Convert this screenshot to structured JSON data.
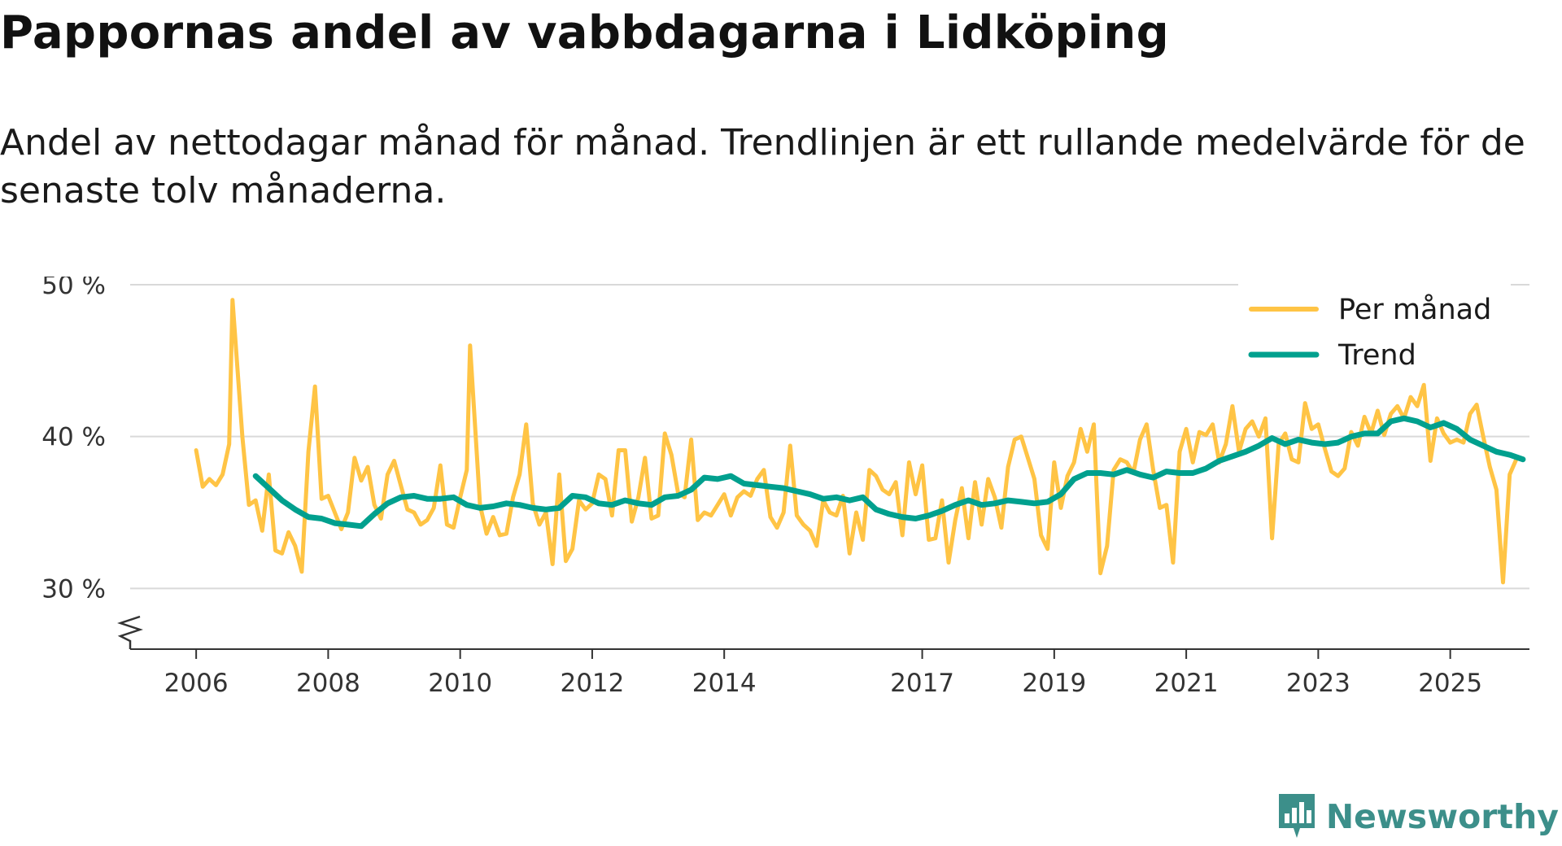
{
  "title": "Pappornas andel av vabbdagarna i Lidköping",
  "subtitle": "Andel av nettodagar månad för månad. Trendlinjen är ett rullande medelvärde för de senaste tolv månaderna.",
  "brand": {
    "name": "Newsworthy",
    "icon": "bar-chart-icon"
  },
  "colors": {
    "per_month": "#ffc445",
    "trend": "#00a08e",
    "grid": "#d9d9d9",
    "axis": "#333333",
    "brand": "#3c8f8a"
  },
  "chart_data": {
    "type": "line",
    "title": "Pappornas andel av vabbdagarna i Lidköping",
    "xlabel": "",
    "ylabel": "",
    "xlim": [
      2005.0,
      2026.2
    ],
    "ylim": [
      26,
      50
    ],
    "y_ticks": [
      30,
      40,
      50
    ],
    "y_tick_labels": [
      "30 %",
      "40 %",
      "50 %"
    ],
    "x_ticks": [
      2006,
      2008,
      2010,
      2012,
      2014,
      2017,
      2019,
      2021,
      2023,
      2025
    ],
    "x_tick_labels": [
      "2006",
      "2008",
      "2010",
      "2012",
      "2014",
      "2017",
      "2019",
      "2021",
      "2023",
      "2025"
    ],
    "grid": true,
    "axis_break": true,
    "legend_position": "top-right",
    "series": [
      {
        "name": "Per månad",
        "points": [
          [
            2006.0,
            39.1
          ],
          [
            2006.1,
            36.7
          ],
          [
            2006.2,
            37.2
          ],
          [
            2006.3,
            36.8
          ],
          [
            2006.4,
            37.5
          ],
          [
            2006.5,
            39.5
          ],
          [
            2006.55,
            49.0
          ],
          [
            2006.7,
            40.0
          ],
          [
            2006.8,
            35.5
          ],
          [
            2006.9,
            35.8
          ],
          [
            2007.0,
            33.8
          ],
          [
            2007.1,
            37.5
          ],
          [
            2007.2,
            32.5
          ],
          [
            2007.3,
            32.3
          ],
          [
            2007.4,
            33.7
          ],
          [
            2007.5,
            32.8
          ],
          [
            2007.6,
            31.1
          ],
          [
            2007.7,
            39.0
          ],
          [
            2007.8,
            43.3
          ],
          [
            2007.9,
            35.9
          ],
          [
            2008.0,
            36.1
          ],
          [
            2008.1,
            35.0
          ],
          [
            2008.2,
            33.9
          ],
          [
            2008.3,
            35.0
          ],
          [
            2008.4,
            38.6
          ],
          [
            2008.5,
            37.1
          ],
          [
            2008.6,
            38.0
          ],
          [
            2008.7,
            35.5
          ],
          [
            2008.8,
            34.6
          ],
          [
            2008.9,
            37.5
          ],
          [
            2009.0,
            38.4
          ],
          [
            2009.1,
            36.8
          ],
          [
            2009.2,
            35.2
          ],
          [
            2009.3,
            35.0
          ],
          [
            2009.4,
            34.2
          ],
          [
            2009.5,
            34.5
          ],
          [
            2009.6,
            35.3
          ],
          [
            2009.7,
            38.1
          ],
          [
            2009.8,
            34.2
          ],
          [
            2009.9,
            34.0
          ],
          [
            2010.0,
            36.0
          ],
          [
            2010.1,
            37.8
          ],
          [
            2010.15,
            46.0
          ],
          [
            2010.3,
            35.5
          ],
          [
            2010.4,
            33.6
          ],
          [
            2010.5,
            34.7
          ],
          [
            2010.6,
            33.5
          ],
          [
            2010.7,
            33.6
          ],
          [
            2010.8,
            36.0
          ],
          [
            2010.9,
            37.5
          ],
          [
            2011.0,
            40.8
          ],
          [
            2011.1,
            35.6
          ],
          [
            2011.2,
            34.2
          ],
          [
            2011.3,
            35.0
          ],
          [
            2011.4,
            31.6
          ],
          [
            2011.5,
            37.5
          ],
          [
            2011.6,
            31.8
          ],
          [
            2011.7,
            32.6
          ],
          [
            2011.8,
            35.8
          ],
          [
            2011.9,
            35.2
          ],
          [
            2012.0,
            35.6
          ],
          [
            2012.1,
            37.5
          ],
          [
            2012.2,
            37.2
          ],
          [
            2012.3,
            34.8
          ],
          [
            2012.4,
            39.1
          ],
          [
            2012.5,
            39.1
          ],
          [
            2012.6,
            34.4
          ],
          [
            2012.7,
            36.0
          ],
          [
            2012.8,
            38.6
          ],
          [
            2012.9,
            34.6
          ],
          [
            2013.0,
            34.8
          ],
          [
            2013.1,
            40.2
          ],
          [
            2013.2,
            38.8
          ],
          [
            2013.3,
            36.3
          ],
          [
            2013.4,
            36.0
          ],
          [
            2013.5,
            39.8
          ],
          [
            2013.6,
            34.5
          ],
          [
            2013.7,
            35.0
          ],
          [
            2013.8,
            34.8
          ],
          [
            2013.9,
            35.5
          ],
          [
            2014.0,
            36.2
          ],
          [
            2014.1,
            34.8
          ],
          [
            2014.2,
            36.0
          ],
          [
            2014.3,
            36.4
          ],
          [
            2014.4,
            36.1
          ],
          [
            2014.5,
            37.2
          ],
          [
            2014.6,
            37.8
          ],
          [
            2014.7,
            34.7
          ],
          [
            2014.8,
            34.0
          ],
          [
            2014.9,
            35.0
          ],
          [
            2015.0,
            39.4
          ],
          [
            2015.1,
            34.8
          ],
          [
            2015.2,
            34.2
          ],
          [
            2015.3,
            33.8
          ],
          [
            2015.4,
            32.8
          ],
          [
            2015.5,
            35.8
          ],
          [
            2015.6,
            35.0
          ],
          [
            2015.7,
            34.8
          ],
          [
            2015.8,
            36.1
          ],
          [
            2015.9,
            32.3
          ],
          [
            2016.0,
            35.0
          ],
          [
            2016.1,
            33.2
          ],
          [
            2016.2,
            37.8
          ],
          [
            2016.3,
            37.4
          ],
          [
            2016.4,
            36.5
          ],
          [
            2016.5,
            36.2
          ],
          [
            2016.6,
            37.0
          ],
          [
            2016.7,
            33.5
          ],
          [
            2016.8,
            38.3
          ],
          [
            2016.9,
            36.2
          ],
          [
            2017.0,
            38.1
          ],
          [
            2017.1,
            33.2
          ],
          [
            2017.2,
            33.3
          ],
          [
            2017.3,
            35.8
          ],
          [
            2017.4,
            31.7
          ],
          [
            2017.5,
            34.5
          ],
          [
            2017.6,
            36.6
          ],
          [
            2017.7,
            33.3
          ],
          [
            2017.8,
            37.0
          ],
          [
            2017.9,
            34.2
          ],
          [
            2018.0,
            37.2
          ],
          [
            2018.1,
            36.0
          ],
          [
            2018.2,
            34.0
          ],
          [
            2018.3,
            38.0
          ],
          [
            2018.4,
            39.8
          ],
          [
            2018.5,
            40.0
          ],
          [
            2018.6,
            38.6
          ],
          [
            2018.7,
            37.2
          ],
          [
            2018.8,
            33.5
          ],
          [
            2018.9,
            32.6
          ],
          [
            2019.0,
            38.3
          ],
          [
            2019.1,
            35.3
          ],
          [
            2019.2,
            37.4
          ],
          [
            2019.3,
            38.3
          ],
          [
            2019.4,
            40.5
          ],
          [
            2019.5,
            39.0
          ],
          [
            2019.6,
            40.8
          ],
          [
            2019.7,
            31.0
          ],
          [
            2019.8,
            32.8
          ],
          [
            2019.9,
            37.8
          ],
          [
            2020.0,
            38.5
          ],
          [
            2020.1,
            38.3
          ],
          [
            2020.2,
            37.6
          ],
          [
            2020.3,
            39.8
          ],
          [
            2020.4,
            40.8
          ],
          [
            2020.5,
            37.8
          ],
          [
            2020.6,
            35.3
          ],
          [
            2020.7,
            35.5
          ],
          [
            2020.8,
            31.7
          ],
          [
            2020.9,
            39.0
          ],
          [
            2021.0,
            40.5
          ],
          [
            2021.1,
            38.3
          ],
          [
            2021.2,
            40.3
          ],
          [
            2021.3,
            40.1
          ],
          [
            2021.4,
            40.8
          ],
          [
            2021.5,
            38.3
          ],
          [
            2021.6,
            39.5
          ],
          [
            2021.7,
            42.0
          ],
          [
            2021.8,
            39.0
          ],
          [
            2021.9,
            40.5
          ],
          [
            2022.0,
            41.0
          ],
          [
            2022.1,
            40.0
          ],
          [
            2022.2,
            41.2
          ],
          [
            2022.3,
            33.3
          ],
          [
            2022.4,
            39.5
          ],
          [
            2022.5,
            40.2
          ],
          [
            2022.6,
            38.5
          ],
          [
            2022.7,
            38.3
          ],
          [
            2022.8,
            42.2
          ],
          [
            2022.9,
            40.5
          ],
          [
            2023.0,
            40.8
          ],
          [
            2023.1,
            39.2
          ],
          [
            2023.2,
            37.7
          ],
          [
            2023.3,
            37.4
          ],
          [
            2023.4,
            37.9
          ],
          [
            2023.5,
            40.3
          ],
          [
            2023.6,
            39.4
          ],
          [
            2023.7,
            41.3
          ],
          [
            2023.8,
            40.2
          ],
          [
            2023.9,
            41.7
          ],
          [
            2024.0,
            40.1
          ],
          [
            2024.1,
            41.5
          ],
          [
            2024.2,
            42.0
          ],
          [
            2024.3,
            41.2
          ],
          [
            2024.4,
            42.6
          ],
          [
            2024.5,
            42.0
          ],
          [
            2024.6,
            43.4
          ],
          [
            2024.7,
            38.4
          ],
          [
            2024.8,
            41.2
          ],
          [
            2024.9,
            40.2
          ],
          [
            2025.0,
            39.6
          ],
          [
            2025.1,
            39.8
          ],
          [
            2025.2,
            39.6
          ],
          [
            2025.3,
            41.5
          ],
          [
            2025.4,
            42.1
          ],
          [
            2025.5,
            40.0
          ],
          [
            2025.6,
            38.0
          ],
          [
            2025.7,
            36.5
          ],
          [
            2025.8,
            30.4
          ],
          [
            2025.9,
            37.5
          ],
          [
            2026.0,
            38.5
          ]
        ]
      },
      {
        "name": "Trend",
        "points": [
          [
            2006.9,
            37.4
          ],
          [
            2007.1,
            36.6
          ],
          [
            2007.3,
            35.8
          ],
          [
            2007.5,
            35.2
          ],
          [
            2007.7,
            34.7
          ],
          [
            2007.9,
            34.6
          ],
          [
            2008.1,
            34.3
          ],
          [
            2008.3,
            34.2
          ],
          [
            2008.5,
            34.1
          ],
          [
            2008.7,
            34.9
          ],
          [
            2008.9,
            35.6
          ],
          [
            2009.1,
            36.0
          ],
          [
            2009.3,
            36.1
          ],
          [
            2009.5,
            35.9
          ],
          [
            2009.7,
            35.9
          ],
          [
            2009.9,
            36.0
          ],
          [
            2010.1,
            35.5
          ],
          [
            2010.3,
            35.3
          ],
          [
            2010.5,
            35.4
          ],
          [
            2010.7,
            35.6
          ],
          [
            2010.9,
            35.5
          ],
          [
            2011.1,
            35.3
          ],
          [
            2011.3,
            35.2
          ],
          [
            2011.5,
            35.3
          ],
          [
            2011.7,
            36.1
          ],
          [
            2011.9,
            36.0
          ],
          [
            2012.1,
            35.6
          ],
          [
            2012.3,
            35.5
          ],
          [
            2012.5,
            35.8
          ],
          [
            2012.7,
            35.6
          ],
          [
            2012.9,
            35.5
          ],
          [
            2013.1,
            36.0
          ],
          [
            2013.3,
            36.1
          ],
          [
            2013.5,
            36.5
          ],
          [
            2013.7,
            37.3
          ],
          [
            2013.9,
            37.2
          ],
          [
            2014.1,
            37.4
          ],
          [
            2014.3,
            36.9
          ],
          [
            2014.5,
            36.8
          ],
          [
            2014.7,
            36.7
          ],
          [
            2014.9,
            36.6
          ],
          [
            2015.1,
            36.4
          ],
          [
            2015.3,
            36.2
          ],
          [
            2015.5,
            35.9
          ],
          [
            2015.7,
            36.0
          ],
          [
            2015.9,
            35.8
          ],
          [
            2016.1,
            36.0
          ],
          [
            2016.3,
            35.2
          ],
          [
            2016.5,
            34.9
          ],
          [
            2016.7,
            34.7
          ],
          [
            2016.9,
            34.6
          ],
          [
            2017.1,
            34.8
          ],
          [
            2017.3,
            35.1
          ],
          [
            2017.5,
            35.5
          ],
          [
            2017.7,
            35.8
          ],
          [
            2017.9,
            35.5
          ],
          [
            2018.1,
            35.6
          ],
          [
            2018.3,
            35.8
          ],
          [
            2018.5,
            35.7
          ],
          [
            2018.7,
            35.6
          ],
          [
            2018.9,
            35.7
          ],
          [
            2019.1,
            36.2
          ],
          [
            2019.3,
            37.2
          ],
          [
            2019.5,
            37.6
          ],
          [
            2019.7,
            37.6
          ],
          [
            2019.9,
            37.5
          ],
          [
            2020.1,
            37.8
          ],
          [
            2020.3,
            37.5
          ],
          [
            2020.5,
            37.3
          ],
          [
            2020.7,
            37.7
          ],
          [
            2020.9,
            37.6
          ],
          [
            2021.1,
            37.6
          ],
          [
            2021.3,
            37.9
          ],
          [
            2021.5,
            38.4
          ],
          [
            2021.7,
            38.7
          ],
          [
            2021.9,
            39.0
          ],
          [
            2022.1,
            39.4
          ],
          [
            2022.3,
            39.9
          ],
          [
            2022.5,
            39.5
          ],
          [
            2022.7,
            39.8
          ],
          [
            2022.9,
            39.6
          ],
          [
            2023.1,
            39.5
          ],
          [
            2023.3,
            39.6
          ],
          [
            2023.5,
            40.0
          ],
          [
            2023.7,
            40.2
          ],
          [
            2023.9,
            40.2
          ],
          [
            2024.1,
            41.0
          ],
          [
            2024.3,
            41.2
          ],
          [
            2024.5,
            41.0
          ],
          [
            2024.7,
            40.6
          ],
          [
            2024.9,
            40.9
          ],
          [
            2025.1,
            40.5
          ],
          [
            2025.3,
            39.8
          ],
          [
            2025.5,
            39.4
          ],
          [
            2025.7,
            39.0
          ],
          [
            2025.9,
            38.8
          ],
          [
            2026.1,
            38.5
          ]
        ]
      }
    ]
  }
}
